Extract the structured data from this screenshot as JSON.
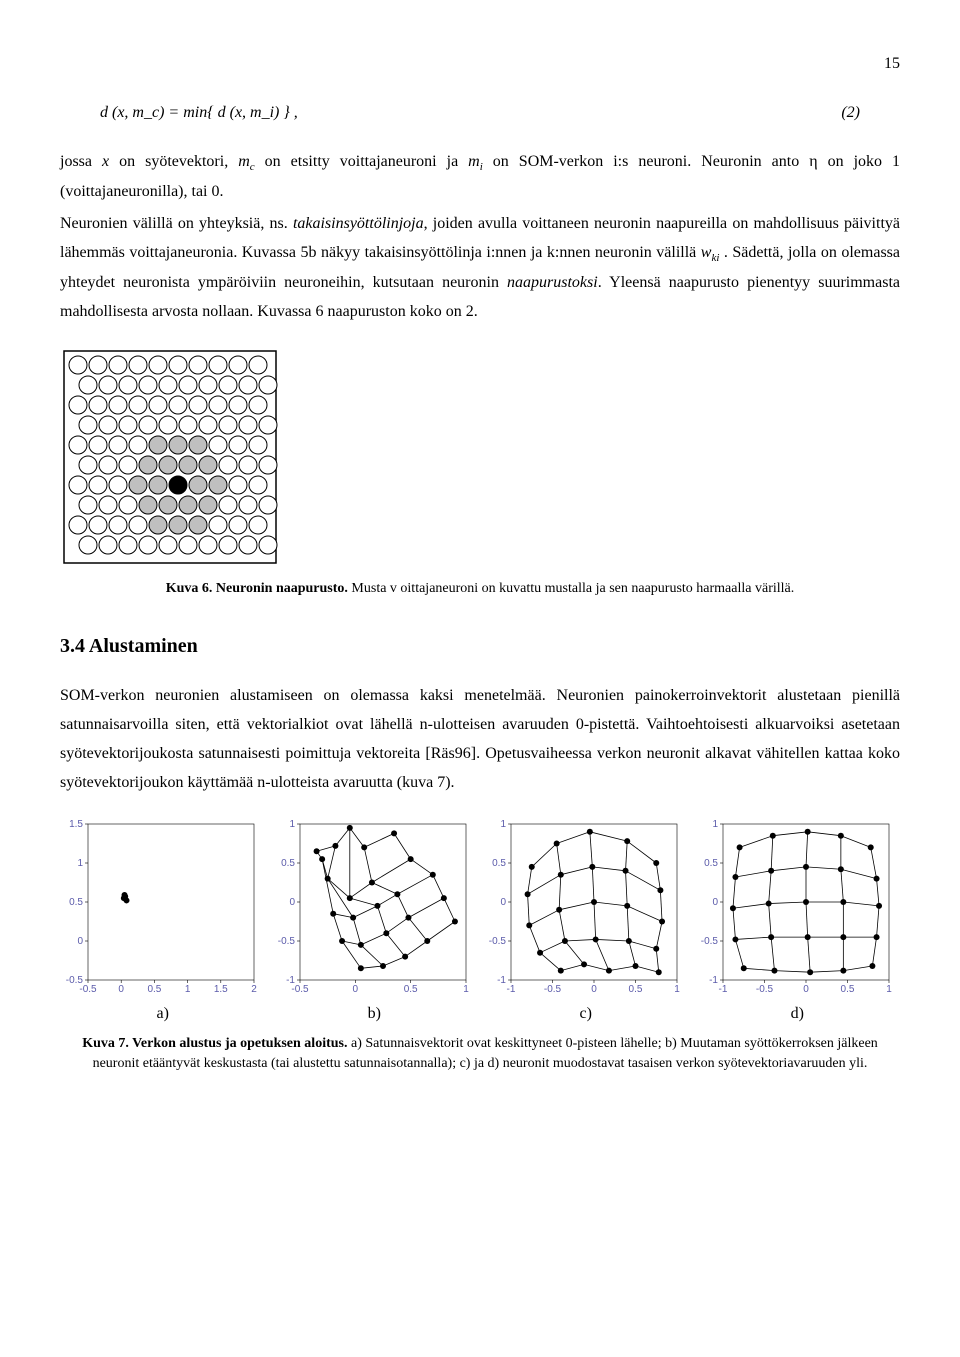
{
  "page_number": "15",
  "formula": {
    "expr": "d (x, m_c) = min{ d (x, m_i) } ,",
    "eqnum": "(2)"
  },
  "para1_parts": {
    "a": "jossa ",
    "b": "x",
    "c": " on syötevektori, ",
    "d": "m",
    "dsub": "c",
    "e": " on etsitty voittajaneuroni ja ",
    "f": "m",
    "fsub": "i",
    "g": " on SOM-verkon i:s neuroni. Neuronin anto η on joko 1 (voittajaneuronilla), tai 0."
  },
  "para2_parts": {
    "a": "Neuronien välillä on yhteyksiä, ns. ",
    "b": "takaisinsyöttölinjoja",
    "c": ", joiden avulla voittaneen neuronin naapureilla on mahdollisuus päivittyä lähemmäs voittajaneuronia. Kuvassa 5b näkyy takaisinsyöttölinja i:nnen ja k:nnen neuronin välillä ",
    "d": "w",
    "dsub": "ki",
    "e": " . Sädettä, jolla on olemassa yhteydet neuronista ympäröiviin neuroneihin, kutsutaan neuronin ",
    "f": "naapurustoksi",
    "g": ". Yleensä naapurusto pienentyy suurimmasta mahdollisesta arvosta nollaan. Kuvassa 6 naapuruston koko on 2."
  },
  "fig6": {
    "caption_bold": "Kuva 6. Neuronin naapurusto.",
    "caption_rest": " Musta v oittajaneuroni on kuvattu mustalla ja sen naapurusto harmaalla värillä.",
    "rows": 10,
    "cols": 10,
    "circle_r": 9,
    "spacing_x": 10,
    "spacing_y": 20,
    "row_offset": 10,
    "winner": [
      6,
      5
    ],
    "neighbors": [
      [
        4,
        4
      ],
      [
        4,
        5
      ],
      [
        4,
        6
      ],
      [
        5,
        3
      ],
      [
        5,
        4
      ],
      [
        5,
        5
      ],
      [
        5,
        6
      ],
      [
        6,
        3
      ],
      [
        6,
        4
      ],
      [
        6,
        6
      ],
      [
        6,
        7
      ],
      [
        7,
        3
      ],
      [
        7,
        4
      ],
      [
        7,
        5
      ],
      [
        7,
        6
      ],
      [
        8,
        4
      ],
      [
        8,
        5
      ],
      [
        8,
        6
      ]
    ],
    "border_color": "#000000"
  },
  "section_heading": "3.4   Alustaminen",
  "para3": "SOM-verkon neuronien alustamiseen on olemassa kaksi menetelmää. Neuronien painokerroinvektorit alustetaan pienillä satunnaisarvoilla siten, että vektorialkiot ovat lähellä n-ulotteisen avaruuden 0-pistettä. Vaihtoehtoisesti alkuarvoiksi asetetaan syötevektorijoukosta satunnaisesti poimittuja vektoreita [Räs96]. Opetusvaiheessa verkon neuronit alkavat  vähitellen kattaa koko syötevektorijoukon käyttämää n-ulotteista avaruutta (kuva 7).",
  "fig7": {
    "panels": {
      "a": {
        "label": "a)",
        "xlim": [
          -0.5,
          2
        ],
        "ylim": [
          -0.5,
          1.5
        ],
        "xticks": [
          -0.5,
          0,
          0.5,
          1,
          1.5,
          2
        ],
        "yticks": [
          -0.5,
          0,
          0.5,
          1,
          1.5
        ],
        "nodes": [
          [
            0.04,
            0.55
          ],
          [
            0.08,
            0.52
          ],
          [
            0.05,
            0.59
          ],
          [
            0.06,
            0.57
          ]
        ],
        "edges": []
      },
      "b": {
        "label": "b)",
        "xlim": [
          -0.5,
          1
        ],
        "ylim": [
          -1,
          1
        ],
        "xticks": [
          -0.5,
          0,
          0.5,
          1
        ],
        "yticks": [
          -1,
          -0.5,
          0,
          0.5,
          1
        ],
        "nodes": [
          [
            -0.35,
            0.65
          ],
          [
            -0.18,
            0.72
          ],
          [
            -0.05,
            0.95
          ],
          [
            0.08,
            0.7
          ],
          [
            0.35,
            0.88
          ],
          [
            -0.3,
            0.55
          ],
          [
            -0.25,
            0.3
          ],
          [
            -0.05,
            0.05
          ],
          [
            0.15,
            0.25
          ],
          [
            0.5,
            0.55
          ],
          [
            -0.2,
            -0.15
          ],
          [
            -0.02,
            -0.2
          ],
          [
            0.2,
            -0.05
          ],
          [
            0.38,
            0.1
          ],
          [
            0.7,
            0.35
          ],
          [
            -0.12,
            -0.5
          ],
          [
            0.05,
            -0.55
          ],
          [
            0.28,
            -0.4
          ],
          [
            0.48,
            -0.2
          ],
          [
            0.8,
            0.05
          ],
          [
            0.05,
            -0.85
          ],
          [
            0.25,
            -0.82
          ],
          [
            0.45,
            -0.7
          ],
          [
            0.65,
            -0.5
          ],
          [
            0.9,
            -0.25
          ]
        ],
        "grid": [
          5,
          5
        ]
      },
      "c": {
        "label": "c)",
        "xlim": [
          -1,
          1
        ],
        "ylim": [
          -1,
          1
        ],
        "xticks": [
          -1,
          -0.5,
          0,
          0.5,
          1
        ],
        "yticks": [
          -1,
          -0.5,
          0,
          0.5,
          1
        ],
        "nodes": [
          [
            -0.75,
            0.45
          ],
          [
            -0.45,
            0.75
          ],
          [
            -0.05,
            0.9
          ],
          [
            0.4,
            0.78
          ],
          [
            0.75,
            0.5
          ],
          [
            -0.8,
            0.1
          ],
          [
            -0.4,
            0.35
          ],
          [
            -0.02,
            0.45
          ],
          [
            0.38,
            0.4
          ],
          [
            0.8,
            0.15
          ],
          [
            -0.78,
            -0.3
          ],
          [
            -0.42,
            -0.1
          ],
          [
            0.0,
            0.0
          ],
          [
            0.4,
            -0.05
          ],
          [
            0.82,
            -0.25
          ],
          [
            -0.65,
            -0.65
          ],
          [
            -0.35,
            -0.5
          ],
          [
            0.02,
            -0.48
          ],
          [
            0.42,
            -0.5
          ],
          [
            0.75,
            -0.6
          ],
          [
            -0.4,
            -0.88
          ],
          [
            -0.12,
            -0.8
          ],
          [
            0.18,
            -0.88
          ],
          [
            0.5,
            -0.82
          ],
          [
            0.78,
            -0.9
          ]
        ],
        "grid": [
          5,
          5
        ]
      },
      "d": {
        "label": "d)",
        "xlim": [
          -1,
          1
        ],
        "ylim": [
          -1,
          1
        ],
        "xticks": [
          -1,
          -0.5,
          0,
          0.5,
          1
        ],
        "yticks": [
          -1,
          -0.5,
          0,
          0.5,
          1
        ],
        "nodes": [
          [
            -0.8,
            0.7
          ],
          [
            -0.4,
            0.85
          ],
          [
            0.02,
            0.9
          ],
          [
            0.42,
            0.85
          ],
          [
            0.78,
            0.7
          ],
          [
            -0.85,
            0.32
          ],
          [
            -0.42,
            0.4
          ],
          [
            0.0,
            0.45
          ],
          [
            0.42,
            0.42
          ],
          [
            0.85,
            0.3
          ],
          [
            -0.88,
            -0.08
          ],
          [
            -0.45,
            -0.02
          ],
          [
            0.0,
            0.0
          ],
          [
            0.45,
            0.0
          ],
          [
            0.88,
            -0.05
          ],
          [
            -0.85,
            -0.48
          ],
          [
            -0.42,
            -0.45
          ],
          [
            0.02,
            -0.45
          ],
          [
            0.45,
            -0.45
          ],
          [
            0.85,
            -0.45
          ],
          [
            -0.75,
            -0.85
          ],
          [
            -0.38,
            -0.88
          ],
          [
            0.05,
            -0.9
          ],
          [
            0.45,
            -0.88
          ],
          [
            0.8,
            -0.82
          ]
        ],
        "grid": [
          5,
          5
        ]
      }
    },
    "caption_bold": "Kuva 7. Verkon alustus ja opetuksen aloitus.",
    "caption_rest": " a) Satunnaisvektorit ovat keskittyneet 0-pisteen lähelle; b) Muutaman syöttökerroksen jälkeen neuronit etääntyvät keskustasta (tai alustettu satunnaisotannalla); c) ja d) neuronit muodostavat tasaisen verkon syötevektoriavaruuden yli."
  }
}
